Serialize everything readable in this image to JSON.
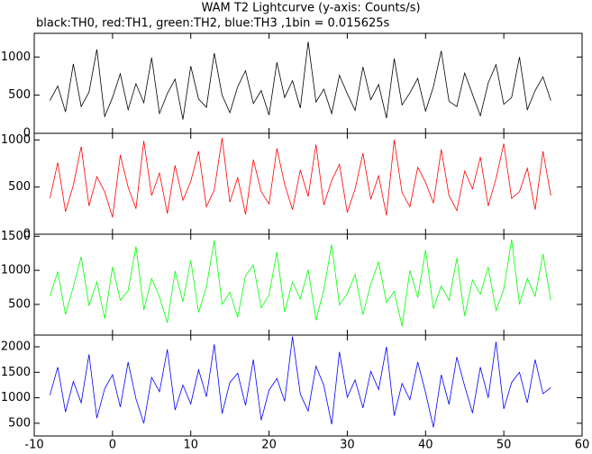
{
  "chart_data": [
    {
      "type": "line",
      "title": "WAM T2 Lightcurve (y-axis: Counts/s)",
      "subtitle": "black:TH0, red:TH1, green:TH2, blue:TH3 ,1bin = 0.015625s",
      "xlim": [
        -10,
        60
      ],
      "xticks": [
        -10,
        0,
        10,
        20,
        30,
        40,
        50,
        60
      ],
      "ylim": [
        0,
        1310
      ],
      "yticks": [
        0,
        500,
        1000
      ],
      "x": [
        -8,
        -7,
        -6,
        -5,
        -4,
        -3,
        -2,
        -1,
        0,
        1,
        2,
        3,
        4,
        5,
        6,
        7,
        8,
        9,
        10,
        11,
        12,
        13,
        14,
        15,
        16,
        17,
        18,
        19,
        20,
        21,
        22,
        23,
        24,
        25,
        26,
        27,
        28,
        29,
        30,
        31,
        32,
        33,
        34,
        35,
        36,
        37,
        38,
        39,
        40,
        41,
        42,
        43,
        44,
        45,
        46,
        47,
        48,
        49,
        50,
        51,
        52,
        53,
        54,
        55,
        56
      ],
      "series": [
        {
          "color": "#000000",
          "values": [
            430,
            620,
            280,
            910,
            350,
            540,
            1100,
            220,
            470,
            780,
            310,
            650,
            400,
            990,
            260,
            520,
            710,
            180,
            880,
            450,
            340,
            1050,
            500,
            270,
            610,
            820,
            390,
            560,
            240,
            930,
            470,
            690,
            330,
            1200,
            410,
            580,
            260,
            760,
            520,
            300,
            870,
            440,
            640,
            200,
            980,
            370,
            530,
            720,
            290,
            610,
            1080,
            420,
            350,
            790,
            510,
            230,
            660,
            900,
            380,
            470,
            1000,
            310,
            560,
            740,
            430
          ]
        }
      ]
    },
    {
      "type": "line",
      "xlim": [
        -10,
        60
      ],
      "xticks": [
        -10,
        0,
        10,
        20,
        30,
        40,
        50,
        60
      ],
      "ylim": [
        0,
        1070
      ],
      "yticks": [
        0,
        500,
        1000
      ],
      "x": [
        -8,
        -7,
        -6,
        -5,
        -4,
        -3,
        -2,
        -1,
        0,
        1,
        2,
        3,
        4,
        5,
        6,
        7,
        8,
        9,
        10,
        11,
        12,
        13,
        14,
        15,
        16,
        17,
        18,
        19,
        20,
        21,
        22,
        23,
        24,
        25,
        26,
        27,
        28,
        29,
        30,
        31,
        32,
        33,
        34,
        35,
        36,
        37,
        38,
        39,
        40,
        41,
        42,
        43,
        44,
        45,
        46,
        47,
        48,
        49,
        50,
        51,
        52,
        53,
        54,
        55,
        56
      ],
      "series": [
        {
          "color": "#ff0000",
          "values": [
            380,
            760,
            240,
            520,
            930,
            300,
            610,
            450,
            180,
            840,
            500,
            270,
            990,
            410,
            650,
            220,
            730,
            360,
            560,
            880,
            290,
            470,
            1020,
            340,
            600,
            210,
            790,
            450,
            320,
            910,
            530,
            260,
            680,
            400,
            950,
            310,
            570,
            740,
            230,
            480,
            860,
            370,
            620,
            200,
            1000,
            440,
            290,
            710,
            550,
            330,
            900,
            410,
            250,
            670,
            480,
            820,
            300,
            590,
            960,
            380,
            450,
            700,
            260,
            880,
            410
          ]
        }
      ]
    },
    {
      "type": "line",
      "xlim": [
        -10,
        60
      ],
      "xticks": [
        -10,
        0,
        10,
        20,
        30,
        40,
        50,
        60
      ],
      "ylim": [
        50,
        1530
      ],
      "yticks": [
        500,
        1000,
        1500
      ],
      "x": [
        -8,
        -7,
        -6,
        -5,
        -4,
        -3,
        -2,
        -1,
        0,
        1,
        2,
        3,
        4,
        5,
        6,
        7,
        8,
        9,
        10,
        11,
        12,
        13,
        14,
        15,
        16,
        17,
        18,
        19,
        20,
        21,
        22,
        23,
        24,
        25,
        26,
        27,
        28,
        29,
        30,
        31,
        32,
        33,
        34,
        35,
        36,
        37,
        38,
        39,
        40,
        41,
        42,
        43,
        44,
        45,
        46,
        47,
        48,
        49,
        50,
        51,
        52,
        53,
        54,
        55,
        56
      ],
      "series": [
        {
          "color": "#00ff00",
          "values": [
            620,
            980,
            350,
            760,
            1200,
            480,
            830,
            290,
            1050,
            560,
            700,
            1350,
            420,
            880,
            610,
            230,
            990,
            540,
            1150,
            380,
            760,
            1440,
            500,
            680,
            310,
            920,
            1080,
            450,
            640,
            1270,
            390,
            830,
            580,
            1010,
            270,
            720,
            1380,
            490,
            660,
            940,
            350,
            800,
            1120,
            530,
            690,
            180,
            1000,
            600,
            1300,
            440,
            770,
            560,
            1180,
            330,
            860,
            650,
            1050,
            410,
            720,
            1450,
            500,
            880,
            620,
            1240,
            560
          ]
        }
      ]
    },
    {
      "type": "line",
      "xlim": [
        -10,
        60
      ],
      "xticks": [
        -10,
        0,
        10,
        20,
        30,
        40,
        50,
        60
      ],
      "ylim": [
        250,
        2230
      ],
      "yticks": [
        500,
        1000,
        1500,
        2000
      ],
      "x": [
        -8,
        -7,
        -6,
        -5,
        -4,
        -3,
        -2,
        -1,
        0,
        1,
        2,
        3,
        4,
        5,
        6,
        7,
        8,
        9,
        10,
        11,
        12,
        13,
        14,
        15,
        16,
        17,
        18,
        19,
        20,
        21,
        22,
        23,
        24,
        25,
        26,
        27,
        28,
        29,
        30,
        31,
        32,
        33,
        34,
        35,
        36,
        37,
        38,
        39,
        40,
        41,
        42,
        43,
        44,
        45,
        46,
        47,
        48,
        49,
        50,
        51,
        52,
        53,
        54,
        55,
        56
      ],
      "series": [
        {
          "color": "#0000ff",
          "values": [
            1050,
            1600,
            720,
            1320,
            900,
            1850,
            600,
            1180,
            1450,
            820,
            1700,
            980,
            500,
            1400,
            1120,
            1950,
            760,
            1250,
            880,
            1550,
            1020,
            2050,
            690,
            1300,
            1480,
            850,
            1750,
            560,
            1150,
            1380,
            930,
            2200,
            1070,
            740,
            1620,
            1240,
            480,
            1900,
            1010,
            1350,
            800,
            1520,
            1160,
            2000,
            650,
            1280,
            960,
            1700,
            1100,
            420,
            1450,
            870,
            1800,
            1230,
            700,
            1600,
            1000,
            2100,
            780,
            1300,
            1500,
            900,
            1750,
            1080,
            1200
          ]
        }
      ]
    }
  ]
}
